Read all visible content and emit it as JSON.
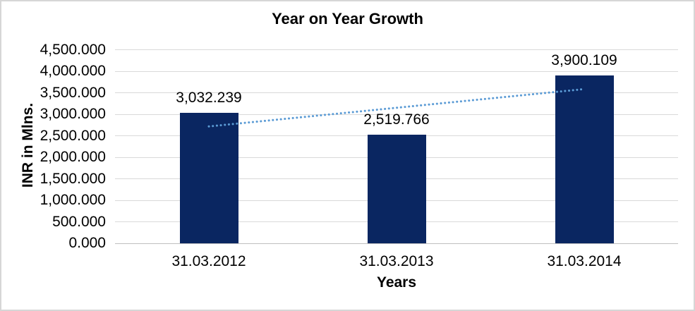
{
  "chart_data": {
    "type": "bar",
    "title": "Year on Year Growth",
    "xlabel": "Years",
    "ylabel": "INR in Mlns.",
    "categories": [
      "31.03.2012",
      "31.03.2013",
      "31.03.2014"
    ],
    "values": [
      3032.239,
      2519.766,
      3900.109
    ],
    "data_labels": [
      "3,032.239",
      "2,519.766",
      "3,900.109"
    ],
    "ylim": [
      0,
      4500
    ],
    "y_step": 500,
    "y_tick_labels": [
      "0.000",
      "500.000",
      "1,000.000",
      "1,500.000",
      "2,000.000",
      "2,500.000",
      "3,000.000",
      "3,500.000",
      "4,000.000",
      "4,500.000"
    ],
    "grid": true,
    "legend": "none",
    "trendline": {
      "type": "linear",
      "style": "dotted",
      "start_value": 2716.8,
      "end_value": 3584.6
    },
    "colors": {
      "bar": "#0A2661",
      "trendline": "#5B9BD5",
      "gridline": "#D9D9D9",
      "axis_line": "#BFBFBF",
      "text": "#000000",
      "frame_border": "#D6D6D6",
      "background": "#FFFFFF"
    }
  }
}
